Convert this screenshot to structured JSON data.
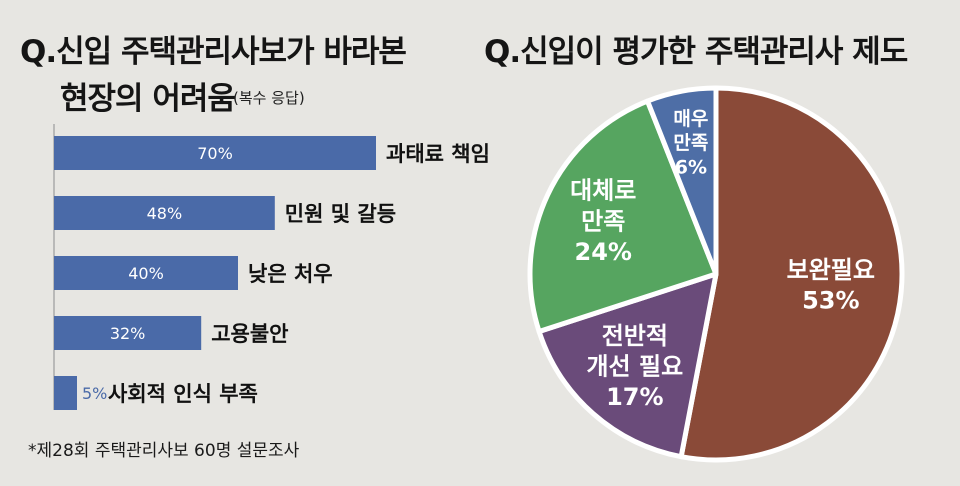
{
  "left_title_line1": "Q.신입 주택관리사보가 바라본",
  "left_title_line2": "현장의 어려움",
  "left_subtitle": "(복수 응답)",
  "right_title": "Q.신입이 평가한 주택관리사 제도",
  "footnote": "*제28회 주택관리사보 60명 설문조사",
  "colors": {
    "bar": "#4a6aa8",
    "axis": "#aaaaaa",
    "pie_need_improvement": "#8a4a38",
    "pie_overall_needed": "#6a4b7a",
    "pie_mostly_satisfied": "#56a560",
    "pie_very_satisfied": "#4e6ea6",
    "pie_border": "#ffffff"
  },
  "chart_data": [
    {
      "type": "bar",
      "orientation": "horizontal",
      "categories": [
        "과태료 책임",
        "민원 및 갈등",
        "낮은 처우",
        "고용불안",
        "사회적 인식 부족"
      ],
      "values": [
        70,
        48,
        40,
        32,
        5
      ],
      "value_labels": [
        "70%",
        "48%",
        "40%",
        "32%",
        "5%"
      ],
      "xlim": [
        0,
        100
      ],
      "grid": false
    },
    {
      "type": "pie",
      "slices": [
        {
          "label_lines": [
            "보완필요"
          ],
          "pct_label": "53%",
          "value": 53
        },
        {
          "label_lines": [
            "전반적",
            "개선 필요"
          ],
          "pct_label": "17%",
          "value": 17
        },
        {
          "label_lines": [
            "대체로",
            "만족"
          ],
          "pct_label": "24%",
          "value": 24
        },
        {
          "label_lines": [
            "매우",
            "만족"
          ],
          "pct_label": "6%",
          "value": 6
        }
      ]
    }
  ]
}
